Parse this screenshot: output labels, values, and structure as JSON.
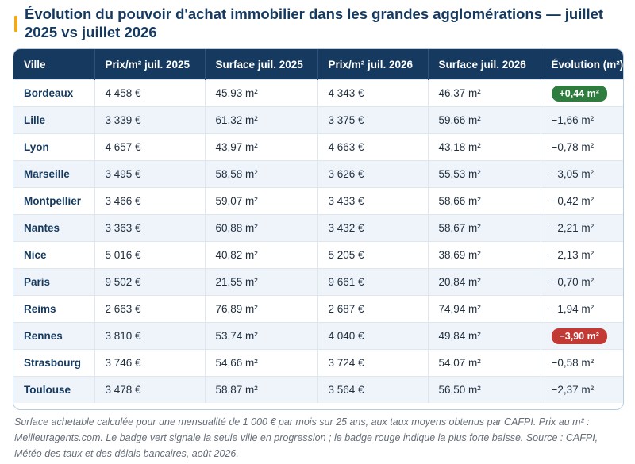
{
  "title": "Évolution du pouvoir d'achat immobilier dans les grandes agglomérations — juillet 2025 vs juillet 2026",
  "columns": [
    "Ville",
    "Prix/m² juil. 2025",
    "Surface juil. 2025",
    "Prix/m² juil. 2026",
    "Surface juil. 2026",
    "Évolution (m²)"
  ],
  "rows": [
    {
      "city": "Bordeaux",
      "price_2025": "4 458 €",
      "surface_2025": "45,93 m²",
      "price_2026": "4 343 €",
      "surface_2026": "46,37 m²",
      "evolution": "+0,44 m²",
      "badge": "up"
    },
    {
      "city": "Lille",
      "price_2025": "3 339 €",
      "surface_2025": "61,32 m²",
      "price_2026": "3 375 €",
      "surface_2026": "59,66 m²",
      "evolution": "−1,66 m²",
      "badge": ""
    },
    {
      "city": "Lyon",
      "price_2025": "4 657 €",
      "surface_2025": "43,97 m²",
      "price_2026": "4 663 €",
      "surface_2026": "43,18 m²",
      "evolution": "−0,78 m²",
      "badge": ""
    },
    {
      "city": "Marseille",
      "price_2025": "3 495 €",
      "surface_2025": "58,58 m²",
      "price_2026": "3 626 €",
      "surface_2026": "55,53 m²",
      "evolution": "−3,05 m²",
      "badge": ""
    },
    {
      "city": "Montpellier",
      "price_2025": "3 466 €",
      "surface_2025": "59,07 m²",
      "price_2026": "3 433 €",
      "surface_2026": "58,66 m²",
      "evolution": "−0,42 m²",
      "badge": ""
    },
    {
      "city": "Nantes",
      "price_2025": "3 363 €",
      "surface_2025": "60,88 m²",
      "price_2026": "3 432 €",
      "surface_2026": "58,67 m²",
      "evolution": "−2,21 m²",
      "badge": ""
    },
    {
      "city": "Nice",
      "price_2025": "5 016 €",
      "surface_2025": "40,82 m²",
      "price_2026": "5 205 €",
      "surface_2026": "38,69 m²",
      "evolution": "−2,13 m²",
      "badge": ""
    },
    {
      "city": "Paris",
      "price_2025": "9 502 €",
      "surface_2025": "21,55 m²",
      "price_2026": "9 661 €",
      "surface_2026": "20,84 m²",
      "evolution": "−0,70 m²",
      "badge": ""
    },
    {
      "city": "Reims",
      "price_2025": "2 663 €",
      "surface_2025": "76,89 m²",
      "price_2026": "2 687 €",
      "surface_2026": "74,94 m²",
      "evolution": "−1,94 m²",
      "badge": ""
    },
    {
      "city": "Rennes",
      "price_2025": "3 810 €",
      "surface_2025": "53,74 m²",
      "price_2026": "4 040 €",
      "surface_2026": "49,84 m²",
      "evolution": "−3,90 m²",
      "badge": "down"
    },
    {
      "city": "Strasbourg",
      "price_2025": "3 746 €",
      "surface_2025": "54,66 m²",
      "price_2026": "3 724 €",
      "surface_2026": "54,07 m²",
      "evolution": "−0,58 m²",
      "badge": ""
    },
    {
      "city": "Toulouse",
      "price_2025": "3 478 €",
      "surface_2025": "58,87 m²",
      "price_2026": "3 564 €",
      "surface_2026": "56,50 m²",
      "evolution": "−2,37 m²",
      "badge": ""
    }
  ],
  "note": "Surface achetable calculée pour une mensualité de 1 000 € par mois sur 25 ans, aux taux moyens obtenus par CAFPI. Prix au m² : Meilleuragents.com. Le badge vert signale la seule ville en progression ; le badge rouge indique la plus forte baisse. Source : CAFPI, Météo des taux et des délais bancaires, août 2026.",
  "colors": {
    "header_bg": "#163a5f",
    "accent": "#f0a81c",
    "badge_up": "#2e7d3e",
    "badge_down": "#c23a33",
    "row_alt": "#eef4fa"
  }
}
